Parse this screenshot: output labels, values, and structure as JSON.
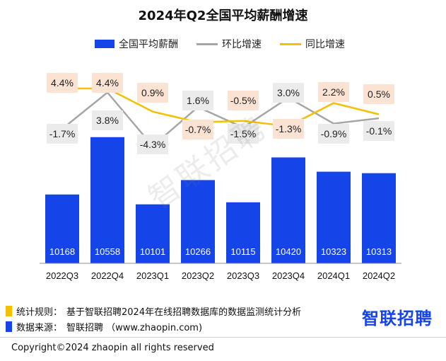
{
  "colors": {
    "bar": "#1545e8",
    "mom_line": "#a6a6a6",
    "yoy_line": "#f5c000",
    "yoy_box": "#fbe3d4",
    "mom_box": "#ebebeb",
    "footer_rule": "#f5c000",
    "footer_source": "#1545e8"
  },
  "chart_data": {
    "type": "bar",
    "title": "2024年Q2全国平均薪酬增速",
    "categories": [
      "2022Q3",
      "2022Q4",
      "2023Q1",
      "2023Q2",
      "2023Q3",
      "2023Q4",
      "2024Q1",
      "2024Q2"
    ],
    "series": [
      {
        "name": "全国平均薪酬",
        "type": "bar",
        "values": [
          10168,
          10558,
          10101,
          10266,
          10115,
          10420,
          10323,
          10313
        ],
        "labels": [
          "10168",
          "10558",
          "10101",
          "10266",
          "10115",
          "10420",
          "10323",
          "10313"
        ]
      },
      {
        "name": "环比增速",
        "type": "line",
        "values": [
          -1.7,
          3.8,
          -4.3,
          1.6,
          -1.5,
          3.0,
          -0.9,
          -0.1
        ],
        "labels": [
          "-1.7%",
          "3.8%",
          "-4.3%",
          "1.6%",
          "-1.5%",
          "3.0%",
          "-0.9%",
          "-0.1%"
        ]
      },
      {
        "name": "同比增速",
        "type": "line",
        "values": [
          4.4,
          4.4,
          0.9,
          -0.7,
          -0.5,
          -1.3,
          2.2,
          0.5
        ],
        "labels": [
          "4.4%",
          "4.4%",
          "0.9%",
          "-0.7%",
          "-0.5%",
          "-1.3%",
          "2.2%",
          "0.5%"
        ]
      }
    ],
    "bar_range": [
      9700,
      10600
    ],
    "rate_range": [
      -22,
      6
    ],
    "legend_position": "top",
    "grid": false
  },
  "watermark": "智联招聘",
  "footer": {
    "rule_label": "统计规则：",
    "rule_text": "基于智联招聘2024年在线招聘数据库的数据监测统计分析",
    "source_label": "数据来源：",
    "source_text": "智联招聘 （www.zhaopin.com)",
    "brand": "智联招聘",
    "copyright": "Copyright©2024 zhaopin all rights reserved"
  }
}
